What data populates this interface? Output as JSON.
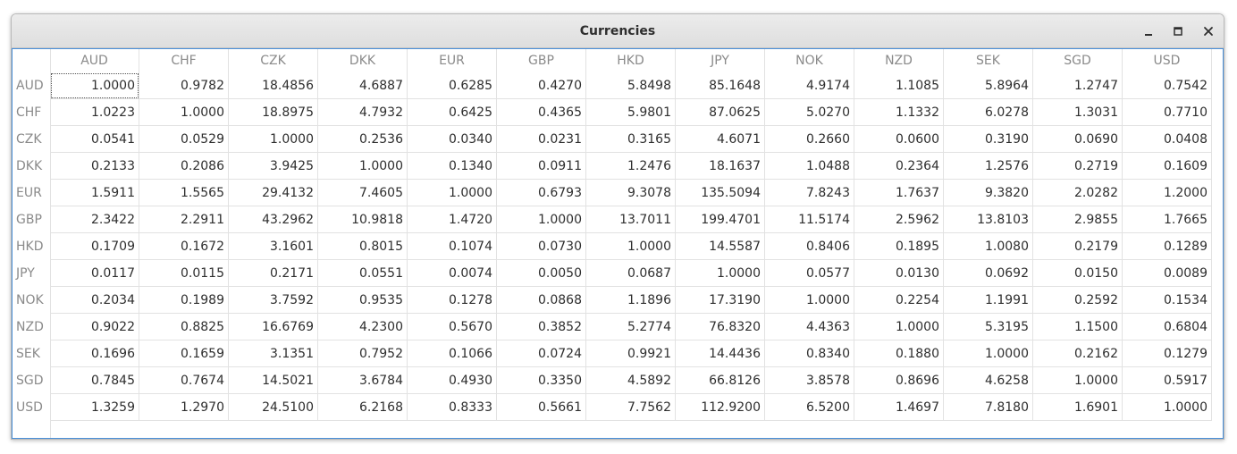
{
  "window": {
    "title": "Currencies",
    "accent_color": "#4a90d9"
  },
  "controls": {
    "minimize_icon": "minimize-icon",
    "maximize_icon": "maximize-icon",
    "close_icon": "close-icon"
  },
  "table": {
    "columns": [
      "AUD",
      "CHF",
      "CZK",
      "DKK",
      "EUR",
      "GBP",
      "HKD",
      "JPY",
      "NOK",
      "NZD",
      "SEK",
      "SGD",
      "USD"
    ],
    "selected_cell": "AUD/AUD",
    "rows": [
      {
        "label": "AUD",
        "values": [
          "1.0000",
          "0.9782",
          "18.4856",
          "4.6887",
          "0.6285",
          "0.4270",
          "5.8498",
          "85.1648",
          "4.9174",
          "1.1085",
          "5.8964",
          "1.2747",
          "0.7542"
        ]
      },
      {
        "label": "CHF",
        "values": [
          "1.0223",
          "1.0000",
          "18.8975",
          "4.7932",
          "0.6425",
          "0.4365",
          "5.9801",
          "87.0625",
          "5.0270",
          "1.1332",
          "6.0278",
          "1.3031",
          "0.7710"
        ]
      },
      {
        "label": "CZK",
        "values": [
          "0.0541",
          "0.0529",
          "1.0000",
          "0.2536",
          "0.0340",
          "0.0231",
          "0.3165",
          "4.6071",
          "0.2660",
          "0.0600",
          "0.3190",
          "0.0690",
          "0.0408"
        ]
      },
      {
        "label": "DKK",
        "values": [
          "0.2133",
          "0.2086",
          "3.9425",
          "1.0000",
          "0.1340",
          "0.0911",
          "1.2476",
          "18.1637",
          "1.0488",
          "0.2364",
          "1.2576",
          "0.2719",
          "0.1609"
        ]
      },
      {
        "label": "EUR",
        "values": [
          "1.5911",
          "1.5565",
          "29.4132",
          "7.4605",
          "1.0000",
          "0.6793",
          "9.3078",
          "135.5094",
          "7.8243",
          "1.7637",
          "9.3820",
          "2.0282",
          "1.2000"
        ]
      },
      {
        "label": "GBP",
        "values": [
          "2.3422",
          "2.2911",
          "43.2962",
          "10.9818",
          "1.4720",
          "1.0000",
          "13.7011",
          "199.4701",
          "11.5174",
          "2.5962",
          "13.8103",
          "2.9855",
          "1.7665"
        ]
      },
      {
        "label": "HKD",
        "values": [
          "0.1709",
          "0.1672",
          "3.1601",
          "0.8015",
          "0.1074",
          "0.0730",
          "1.0000",
          "14.5587",
          "0.8406",
          "0.1895",
          "1.0080",
          "0.2179",
          "0.1289"
        ]
      },
      {
        "label": "JPY",
        "values": [
          "0.0117",
          "0.0115",
          "0.2171",
          "0.0551",
          "0.0074",
          "0.0050",
          "0.0687",
          "1.0000",
          "0.0577",
          "0.0130",
          "0.0692",
          "0.0150",
          "0.0089"
        ]
      },
      {
        "label": "NOK",
        "values": [
          "0.2034",
          "0.1989",
          "3.7592",
          "0.9535",
          "0.1278",
          "0.0868",
          "1.1896",
          "17.3190",
          "1.0000",
          "0.2254",
          "1.1991",
          "0.2592",
          "0.1534"
        ]
      },
      {
        "label": "NZD",
        "values": [
          "0.9022",
          "0.8825",
          "16.6769",
          "4.2300",
          "0.5670",
          "0.3852",
          "5.2774",
          "76.8320",
          "4.4363",
          "1.0000",
          "5.3195",
          "1.1500",
          "0.6804"
        ]
      },
      {
        "label": "SEK",
        "values": [
          "0.1696",
          "0.1659",
          "3.1351",
          "0.7952",
          "0.1066",
          "0.0724",
          "0.9921",
          "14.4436",
          "0.8340",
          "0.1880",
          "1.0000",
          "0.2162",
          "0.1279"
        ]
      },
      {
        "label": "SGD",
        "values": [
          "0.7845",
          "0.7674",
          "14.5021",
          "3.6784",
          "0.4930",
          "0.3350",
          "4.5892",
          "66.8126",
          "3.8578",
          "0.8696",
          "4.6258",
          "1.0000",
          "0.5917"
        ]
      },
      {
        "label": "USD",
        "values": [
          "1.3259",
          "1.2970",
          "24.5100",
          "6.2168",
          "0.8333",
          "0.5661",
          "7.7562",
          "112.9200",
          "6.5200",
          "1.4697",
          "7.8180",
          "1.6901",
          "1.0000"
        ]
      }
    ]
  }
}
